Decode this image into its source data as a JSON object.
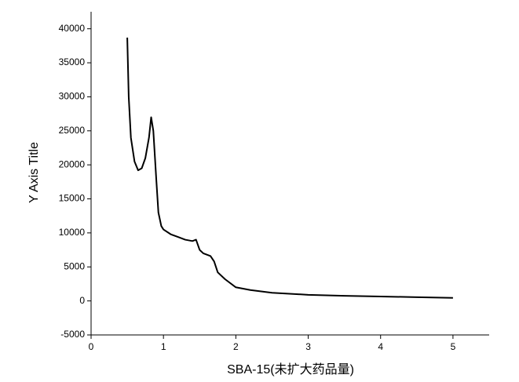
{
  "chart_data": {
    "type": "line",
    "xlabel": "SBA-15(未扩大药品量)",
    "ylabel": "Y Axis Title",
    "x": [
      0.5,
      0.52,
      0.55,
      0.6,
      0.65,
      0.7,
      0.75,
      0.8,
      0.83,
      0.86,
      0.9,
      0.93,
      0.97,
      1.0,
      1.1,
      1.2,
      1.3,
      1.4,
      1.45,
      1.5,
      1.55,
      1.65,
      1.7,
      1.75,
      1.85,
      2.0,
      2.2,
      2.5,
      3.0,
      3.5,
      4.0,
      4.5,
      5.0
    ],
    "series": [
      {
        "color": "#000000",
        "values": [
          38700,
          30000,
          24000,
          20500,
          19200,
          19500,
          21000,
          24000,
          27000,
          25000,
          18000,
          13000,
          11000,
          10500,
          9800,
          9400,
          9000,
          8800,
          9000,
          7500,
          7000,
          6600,
          5800,
          4200,
          3200,
          2000,
          1600,
          1200,
          900,
          750,
          650,
          550,
          450
        ]
      }
    ],
    "xlim": [
      0,
      5.5
    ],
    "xticks": [
      0,
      1,
      2,
      3,
      4,
      5
    ],
    "ylim": [
      -5000,
      42500
    ],
    "yticks": [
      -5000,
      0,
      5000,
      10000,
      15000,
      20000,
      25000,
      30000,
      35000,
      40000
    ]
  }
}
